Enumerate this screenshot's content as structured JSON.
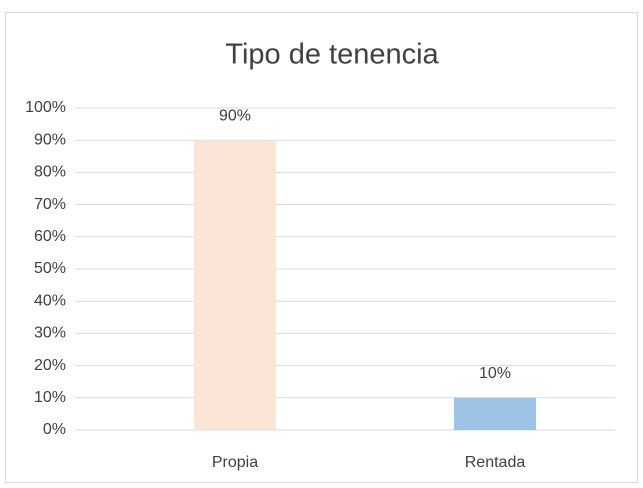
{
  "chart_data": {
    "type": "bar",
    "title": "Tipo de tenencia",
    "categories": [
      "Propia",
      "Rentada"
    ],
    "values": [
      90,
      10
    ],
    "value_labels": [
      "90%",
      "10%"
    ],
    "colors": [
      "#fbe5d6",
      "#9dc3e6"
    ],
    "ylim": [
      0,
      100
    ],
    "yticks": [
      {
        "value": 0,
        "label": "0%"
      },
      {
        "value": 10,
        "label": "10%"
      },
      {
        "value": 20,
        "label": "20%"
      },
      {
        "value": 30,
        "label": "30%"
      },
      {
        "value": 40,
        "label": "40%"
      },
      {
        "value": 50,
        "label": "50%"
      },
      {
        "value": 60,
        "label": "60%"
      },
      {
        "value": 70,
        "label": "70%"
      },
      {
        "value": 80,
        "label": "80%"
      },
      {
        "value": 90,
        "label": "90%"
      },
      {
        "value": 100,
        "label": "100%"
      }
    ],
    "grid": true
  }
}
